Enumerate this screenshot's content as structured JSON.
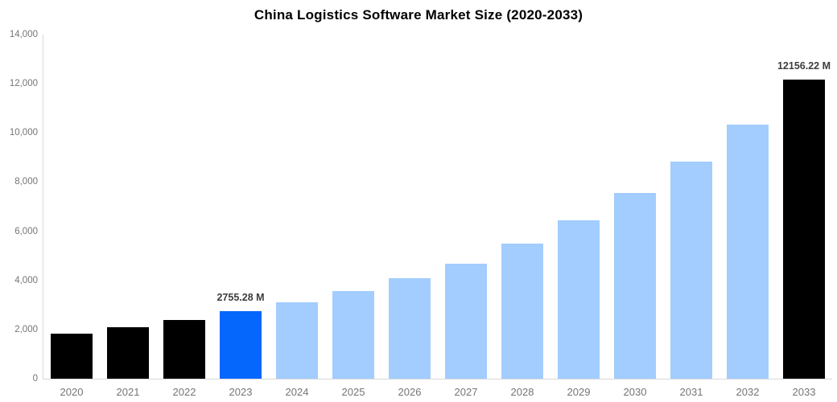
{
  "title": "China Logistics Software Market Size (2020-2033)",
  "chart_data": {
    "type": "bar",
    "title": "China Logistics Software Market Size (2020-2033)",
    "xlabel": "",
    "ylabel": "",
    "categories": [
      "2020",
      "2021",
      "2022",
      "2023",
      "2024",
      "2025",
      "2026",
      "2027",
      "2028",
      "2029",
      "2030",
      "2031",
      "2032",
      "2033"
    ],
    "values": [
      1820,
      2080,
      2390,
      2755.28,
      3120,
      3580,
      4100,
      4690,
      5490,
      6430,
      7570,
      8820,
      10350,
      12156.22
    ],
    "bar_labels": [
      "",
      "",
      "",
      "2755.28 M",
      "",
      "",
      "",
      "",
      "",
      "",
      "",
      "",
      "",
      "12156.22 M"
    ],
    "point_colors": [
      "#000000",
      "#000000",
      "#000000",
      "#0667fd",
      "#a2cdfe",
      "#a2cdfe",
      "#a2cdfe",
      "#a2cdfe",
      "#a2cdfe",
      "#a2cdfe",
      "#a2cdfe",
      "#a2cdfe",
      "#a2cdfe",
      "#000000"
    ],
    "ylim": [
      0,
      14000
    ],
    "ytick_step": 2000,
    "ytick_labels": [
      "0",
      "2,000",
      "4,000",
      "6,000",
      "8,000",
      "10,000",
      "12,000",
      "14,000"
    ],
    "grid": false,
    "legend": false
  },
  "colors": {
    "highlight_blue": "#0667fd",
    "forecast_light_blue": "#a2cdfe",
    "historical_black": "#000000",
    "axis_line": "#d9d9d9",
    "tick_text": "#757575",
    "value_label_text": "#3d3d3d",
    "background": "#ffffff"
  }
}
